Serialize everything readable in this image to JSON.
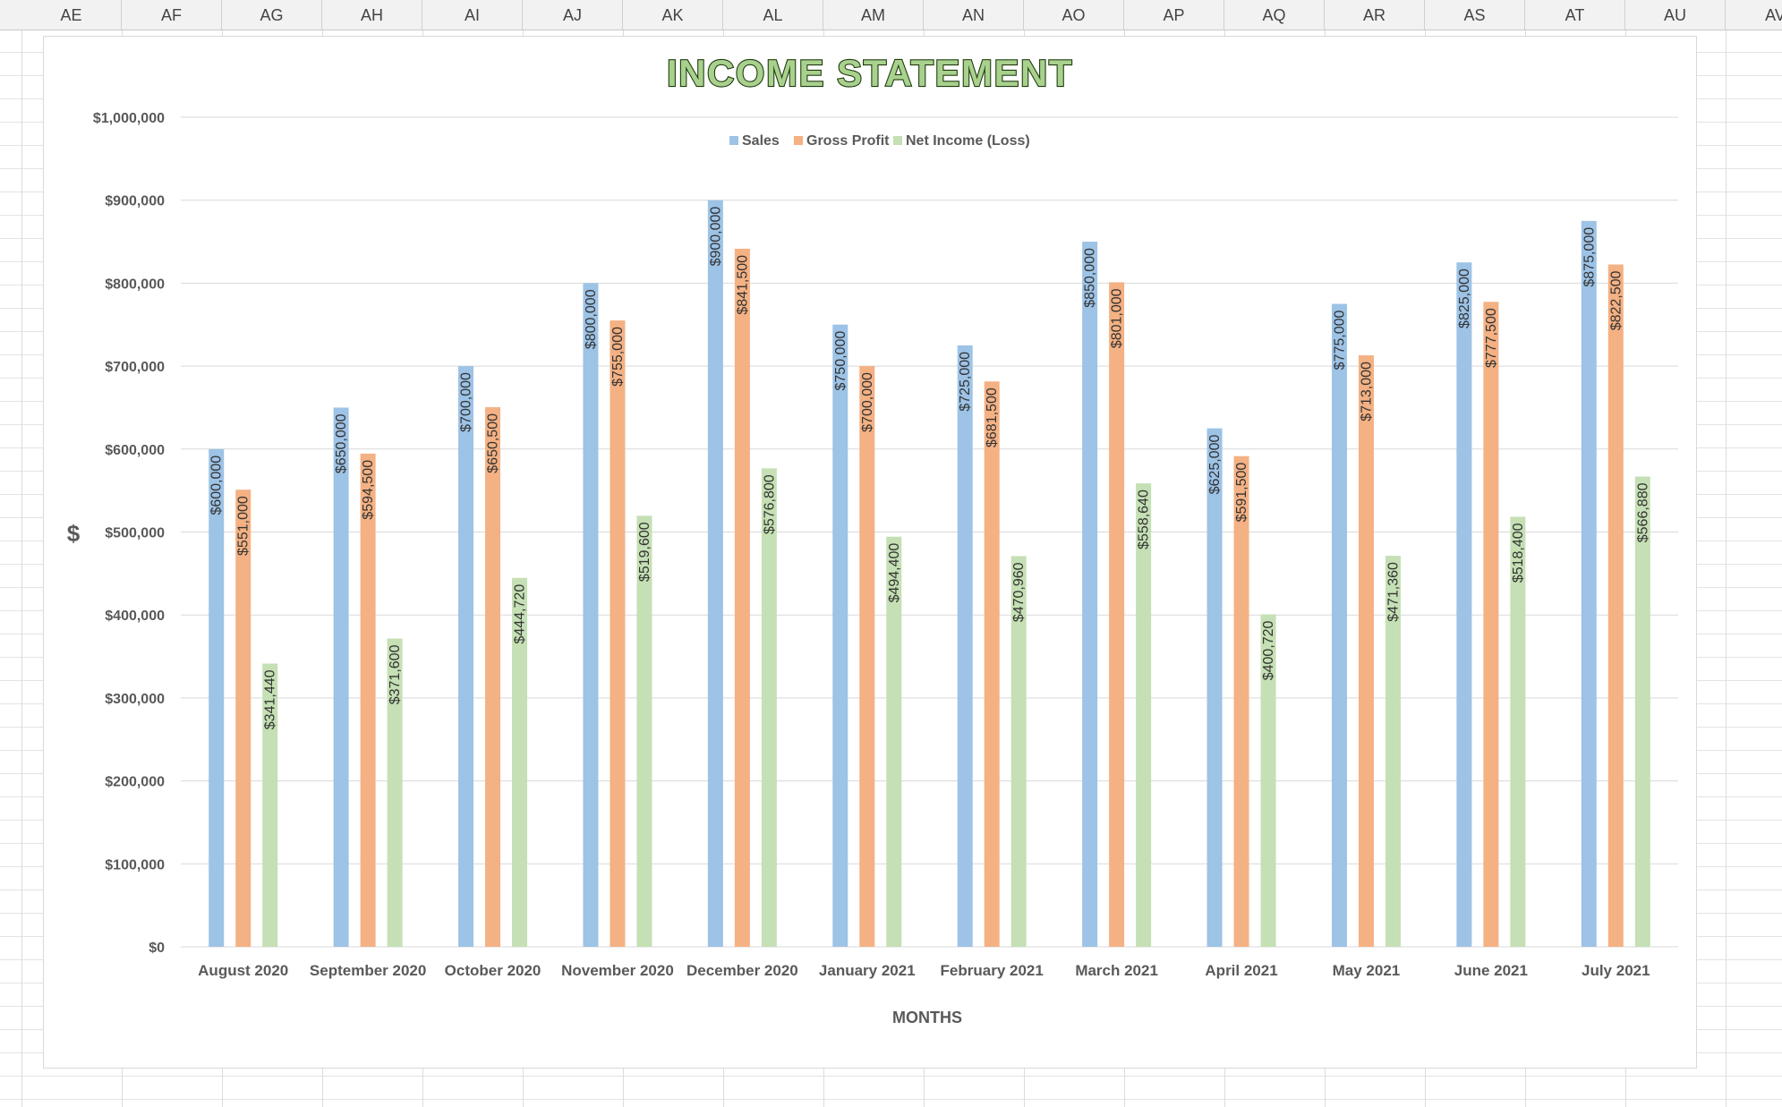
{
  "spreadsheet": {
    "columns": [
      "AE",
      "AF",
      "AG",
      "AH",
      "AI",
      "AJ",
      "AK",
      "AL",
      "AM",
      "AN",
      "AO",
      "AP",
      "AQ",
      "AR",
      "AS",
      "AT",
      "AU",
      "AV"
    ]
  },
  "colors": {
    "sales": "#9DC3E6",
    "gross_profit": "#F4B183",
    "net_income": "#C5E0B4",
    "title_fill": "#A9D18E",
    "title_stroke": "#1F3B0E",
    "gridline": "#D9D9D9",
    "axis_text": "#595959"
  },
  "chart_data": {
    "type": "bar",
    "title": "INCOME STATEMENT",
    "xlabel": "MONTHS",
    "ylabel": "$",
    "ylim": [
      0,
      1000000
    ],
    "yticks": [
      "$0",
      "$100,000",
      "$200,000",
      "$300,000",
      "$400,000",
      "$500,000",
      "$600,000",
      "$700,000",
      "$800,000",
      "$900,000",
      "$1,000,000"
    ],
    "legend_position": "top",
    "grid": true,
    "categories": [
      "August 2020",
      "September 2020",
      "October 2020",
      "November 2020",
      "December 2020",
      "January 2021",
      "February 2021",
      "March 2021",
      "April 2021",
      "May 2021",
      "June 2021",
      "July 2021"
    ],
    "series": [
      {
        "name": "Sales",
        "values": [
          600000,
          650000,
          700000,
          800000,
          900000,
          750000,
          725000,
          850000,
          625000,
          775000,
          825000,
          875000
        ],
        "labels": [
          "$600,000",
          "$650,000",
          "$700,000",
          "$800,000",
          "$900,000",
          "$750,000",
          "$725,000",
          "$850,000",
          "$625,000",
          "$775,000",
          "$825,000",
          "$875,000"
        ]
      },
      {
        "name": "Gross Profit",
        "values": [
          551000,
          594500,
          650500,
          755000,
          841500,
          700000,
          681500,
          801000,
          591500,
          713000,
          777500,
          822500
        ],
        "labels": [
          "$551,000",
          "$594,500",
          "$650,500",
          "$755,000",
          "$841,500",
          "$700,000",
          "$681,500",
          "$801,000",
          "$591,500",
          "$713,000",
          "$777,500",
          "$822,500"
        ]
      },
      {
        "name": "Net Income (Loss)",
        "values": [
          341440,
          371600,
          444720,
          519600,
          576800,
          494400,
          470960,
          558640,
          400720,
          471360,
          518400,
          566880
        ],
        "labels": [
          "$341,440",
          "$371,600",
          "$444,720",
          "$519,600",
          "$576,800",
          "$494,400",
          "$470,960",
          "$558,640",
          "$400,720",
          "$471,360",
          "$518,400",
          "$566,880"
        ]
      }
    ]
  }
}
